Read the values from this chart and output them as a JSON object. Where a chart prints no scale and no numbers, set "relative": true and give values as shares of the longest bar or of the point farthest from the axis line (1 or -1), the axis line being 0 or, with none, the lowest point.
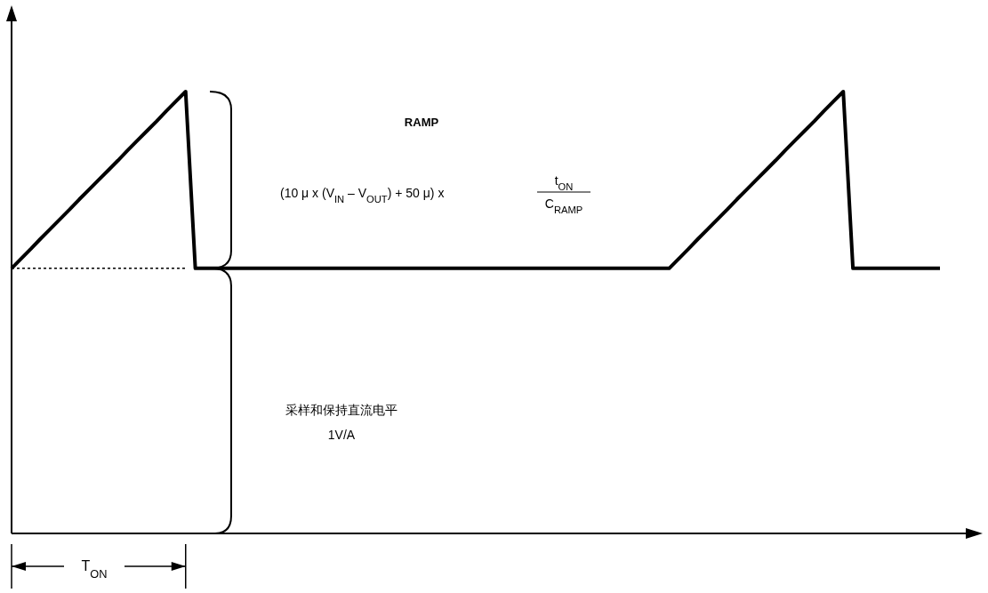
{
  "chart_data": {
    "type": "line",
    "relative": true,
    "categories": [
      null,
      null,
      null,
      null,
      null,
      null,
      null,
      null,
      null,
      null,
      null,
      null,
      null,
      null,
      null,
      null,
      null,
      null,
      null,
      null,
      null,
      null,
      null,
      null,
      null,
      null,
      null,
      null,
      null,
      null,
      null,
      null,
      null,
      null,
      null,
      null,
      null,
      null,
      null,
      null,
      null,
      null,
      null,
      null,
      null,
      null,
      null,
      null,
      null,
      null,
      null,
      null,
      null,
      null,
      null,
      null,
      null,
      null,
      null,
      null,
      null,
      null,
      null,
      null,
      null,
      null,
      null,
      null,
      null,
      null,
      null,
      null,
      null,
      null,
      null,
      null,
      null,
      null,
      null,
      null,
      null,
      null,
      null,
      null,
      null,
      null,
      null,
      null,
      null,
      null,
      null,
      null,
      null,
      null,
      null,
      null,
      null
    ],
    "series": [
      {
        "color": "#000000",
        "values": [
          0.6,
          0.622,
          0.644,
          0.667,
          0.689,
          0.711,
          0.733,
          0.756,
          0.778,
          0.8,
          0.822,
          0.844,
          0.867,
          0.889,
          0.911,
          0.933,
          0.956,
          0.978,
          1,
          0.6,
          0.6,
          0.6,
          0.6,
          0.6,
          0.6,
          0.6,
          0.6,
          0.6,
          0.6,
          0.6,
          0.6,
          0.6,
          0.6,
          0.6,
          0.6,
          0.6,
          0.6,
          0.6,
          0.6,
          0.6,
          0.6,
          0.6,
          0.6,
          0.6,
          0.6,
          0.6,
          0.6,
          0.6,
          0.6,
          0.6,
          0.6,
          0.6,
          0.6,
          0.6,
          0.6,
          0.6,
          0.6,
          0.6,
          0.6,
          0.6,
          0.6,
          0.6,
          0.6,
          0.6,
          0.6,
          0.6,
          0.6,
          0.6,
          0.6,
          0.622,
          0.644,
          0.667,
          0.689,
          0.711,
          0.733,
          0.756,
          0.778,
          0.8,
          0.822,
          0.844,
          0.867,
          0.889,
          0.911,
          0.933,
          0.956,
          0.978,
          1,
          0.6,
          0.6,
          0.6,
          0.6,
          0.6,
          0.6,
          0.6,
          0.6,
          0.6,
          0.6
        ]
      }
    ],
    "ref_lines": [
      {
        "axis": "y",
        "value": 0.6,
        "color": "#000000",
        "line_style": "dotted"
      }
    ],
    "annotations": [
      "RAMP",
      "(10 μ x (V$_{IN}$ – V$_{OUT}$) + 50 μ) x",
      "t$_{ON}$",
      "C$_{RAMP}$",
      "采样和保持直流电平",
      "1V/A",
      "T$_{ON}$"
    ]
  }
}
